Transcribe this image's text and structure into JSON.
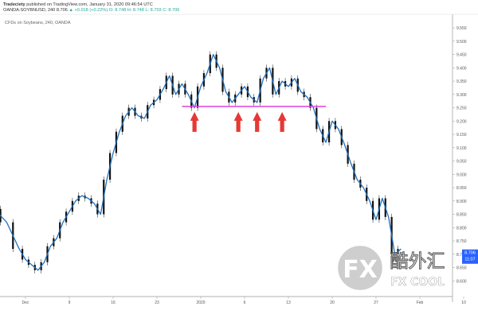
{
  "header": {
    "published_by": "Tradeciety",
    "published_rest": "published on TradingView.com, January 31, 2020 09:46:54 UTC",
    "symbol_line": "OANDA:SOYBNUSD, 240",
    "quote_prefix": "8.706",
    "quote_rest": "▲ +0.018 (+0.22%) O: 8.748 H: 8.748 L: 8.703 C: 8.706"
  },
  "legend_title": "CFDs on Soybeans, 240, OANDA",
  "price_tag": {
    "price": "8.706",
    "timer": "11:07"
  },
  "watermark": {
    "logo": "FX",
    "cn": "酷外汇",
    "en": "FX COOL"
  },
  "colors": {
    "line": "#1f6fbf",
    "candle_body": "#111111",
    "neckline": "#e040e0",
    "arrow": "#e53935",
    "price_tag": "#2962ff"
  },
  "chart_data": {
    "type": "line",
    "title": "CFDs on Soybeans, 240, OANDA",
    "xlabel": "",
    "ylabel": "",
    "x_ticks": [
      "Dec",
      "9",
      "16",
      "23",
      "2020",
      "6",
      "13",
      "20",
      "27",
      "Feb",
      "10"
    ],
    "y_ticks": [
      8.6,
      8.65,
      8.7,
      8.75,
      8.8,
      8.85,
      8.9,
      8.95,
      9.0,
      9.05,
      9.1,
      9.15,
      9.2,
      9.25,
      9.3,
      9.35,
      9.4,
      9.45,
      9.5,
      9.55
    ],
    "ylim": [
      8.58,
      9.58
    ],
    "grid": false,
    "neckline_level": 9.255,
    "neckline_range": [
      "2019-12-27",
      "2020-01-19"
    ],
    "support_touch_dates": [
      "2019-12-29",
      "2020-01-05",
      "2020-01-08",
      "2020-01-12"
    ],
    "series": [
      {
        "x": [
          "2019-11-27",
          "2019-11-29",
          "2019-12-01",
          "2019-12-02",
          "2019-12-03",
          "2019-12-04",
          "2019-12-05",
          "2019-12-06",
          "2019-12-07",
          "2019-12-08",
          "2019-12-09",
          "2019-12-10",
          "2019-12-11",
          "2019-12-12",
          "2019-12-13",
          "2019-12-14",
          "2019-12-15",
          "2019-12-16",
          "2019-12-17",
          "2019-12-18",
          "2019-12-19",
          "2019-12-20",
          "2019-12-21",
          "2019-12-22",
          "2019-12-23",
          "2019-12-24",
          "2019-12-25",
          "2019-12-26",
          "2019-12-27",
          "2019-12-28",
          "2019-12-29",
          "2019-12-30",
          "2019-12-31",
          "2020-01-01",
          "2020-01-02",
          "2020-01-03",
          "2020-01-04",
          "2020-01-05",
          "2020-01-06",
          "2020-01-07",
          "2020-01-08",
          "2020-01-09",
          "2020-01-10",
          "2020-01-11",
          "2020-01-12",
          "2020-01-13",
          "2020-01-14",
          "2020-01-15",
          "2020-01-16",
          "2020-01-17",
          "2020-01-18",
          "2020-01-19",
          "2020-01-20",
          "2020-01-21",
          "2020-01-22",
          "2020-01-23",
          "2020-01-24",
          "2020-01-25",
          "2020-01-26",
          "2020-01-27",
          "2020-01-28",
          "2020-01-29",
          "2020-01-30",
          "2020-01-31"
        ],
        "values": [
          8.87,
          8.82,
          8.72,
          8.68,
          8.66,
          8.64,
          8.67,
          8.73,
          8.76,
          8.82,
          8.86,
          8.9,
          8.92,
          8.91,
          8.89,
          8.85,
          8.98,
          9.08,
          9.16,
          9.22,
          9.25,
          9.22,
          9.21,
          9.26,
          9.28,
          9.32,
          9.37,
          9.3,
          9.34,
          9.3,
          9.25,
          9.33,
          9.38,
          9.45,
          9.4,
          9.31,
          9.27,
          9.3,
          9.33,
          9.29,
          9.27,
          9.36,
          9.4,
          9.3,
          9.35,
          9.33,
          9.36,
          9.31,
          9.29,
          9.25,
          9.17,
          9.12,
          9.2,
          9.17,
          9.11,
          9.04,
          8.98,
          8.95,
          8.9,
          8.83,
          8.91,
          8.84,
          8.7,
          8.72
        ]
      }
    ]
  }
}
